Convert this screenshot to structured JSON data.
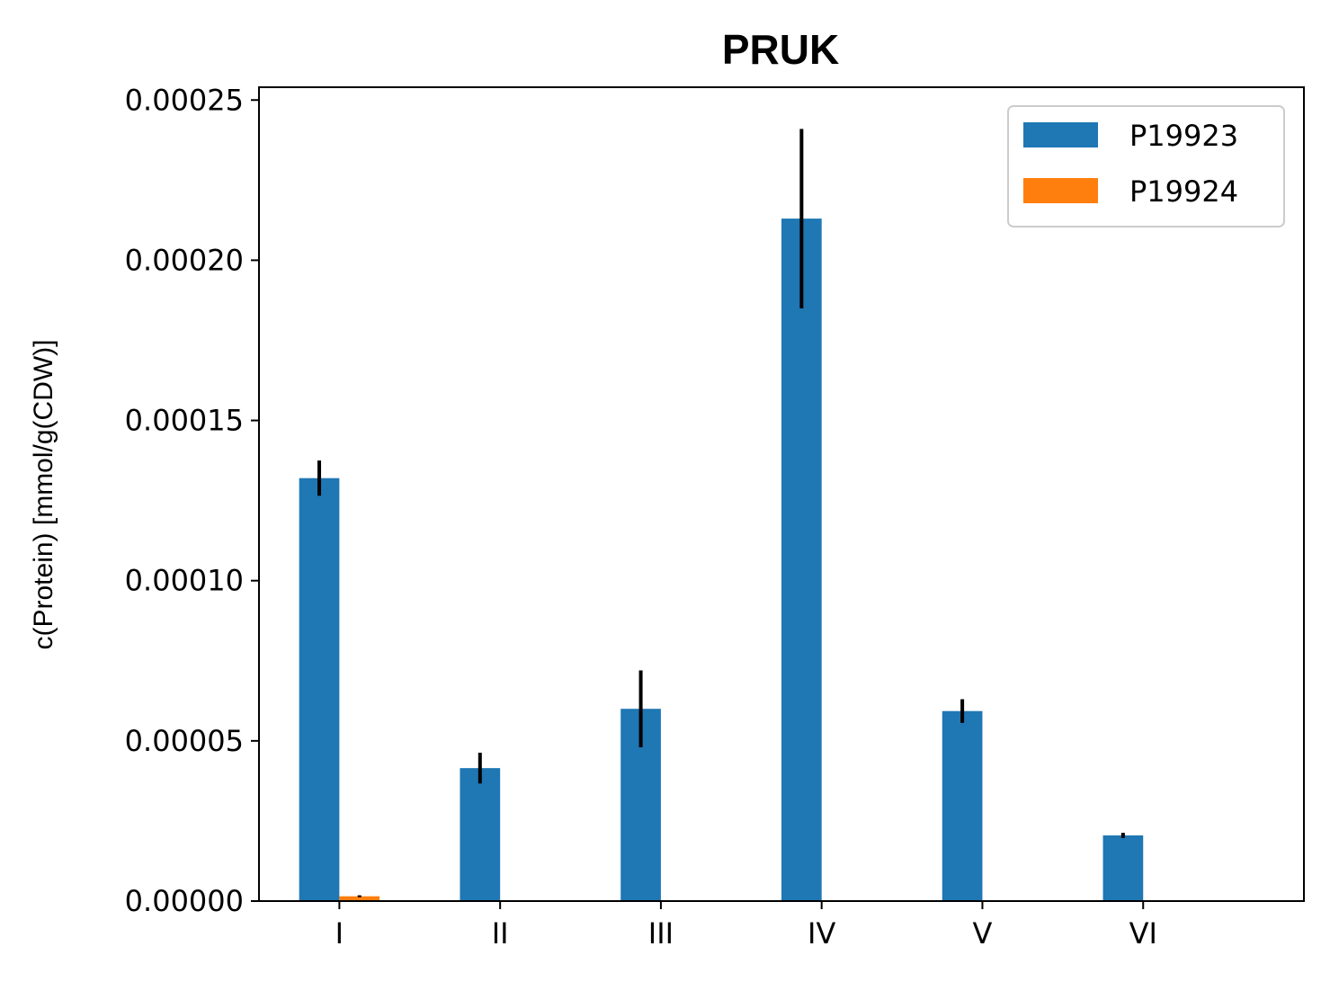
{
  "chart_data": {
    "type": "bar",
    "title": "PRUK",
    "xlabel": "",
    "ylabel": "c(Protein) [mmol/g(CDW)]",
    "categories": [
      "I",
      "II",
      "III",
      "IV",
      "V",
      "VI"
    ],
    "ylim": [
      0,
      0.000254
    ],
    "yticks": [
      "0.00000",
      "0.00005",
      "0.00010",
      "0.00015",
      "0.00020",
      "0.00025"
    ],
    "ytick_values": [
      0,
      5e-05,
      0.0001,
      0.00015,
      0.0002,
      0.00025
    ],
    "legend_position": "top-right",
    "grid": false,
    "series": [
      {
        "name": "P19923",
        "color": "#1f77b4",
        "values": [
          0.000132,
          4.15e-05,
          6e-05,
          0.000213,
          5.93e-05,
          2.05e-05
        ],
        "errors": [
          5.5e-06,
          4.8e-06,
          1.2e-05,
          2.8e-05,
          3.7e-06,
          8e-07
        ]
      },
      {
        "name": "P19924",
        "color": "#ff7f0e",
        "values": [
          1.5e-06,
          0.0,
          1e-07,
          0.0,
          0.0,
          0.0
        ],
        "errors": [
          3e-07,
          0.0,
          1e-07,
          0.0,
          0.0,
          0.0
        ]
      }
    ]
  }
}
